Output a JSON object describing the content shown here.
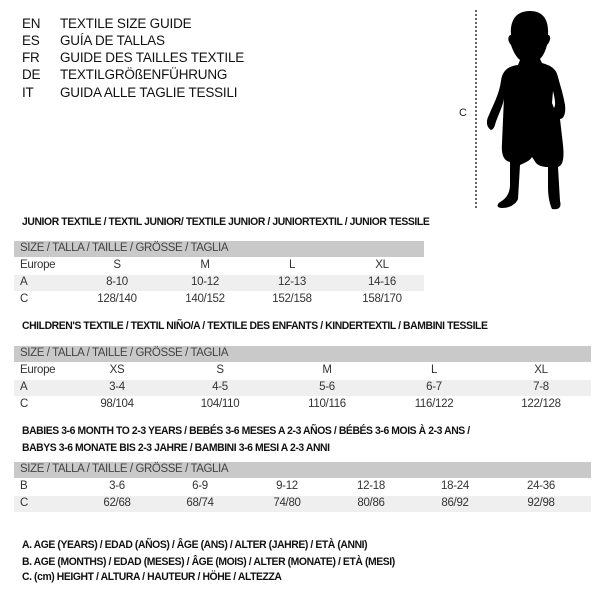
{
  "languages": [
    {
      "code": "EN",
      "title": "TEXTILE SIZE GUIDE"
    },
    {
      "code": "ES",
      "title": "GUÍA DE TALLAS"
    },
    {
      "code": "FR",
      "title": "GUIDE DES TAILLES TEXTILE"
    },
    {
      "code": "DE",
      "title": "TEXTILGRÖßENFÜHRUNG"
    },
    {
      "code": "IT",
      "title": "GUIDA ALLE TAGLIE TESSILI"
    }
  ],
  "figure": {
    "measure_label": "C",
    "icon": "child-silhouette"
  },
  "tables": [
    {
      "title_lines": [
        "JUNIOR TEXTILE / TEXTIL JUNIOR/ TEXTILE JUNIOR / JUNIORTEXTIL / JUNIOR TESSILE"
      ],
      "header": "SIZE / TALLA / TAILLE / GRÖSSE / TAGLIA",
      "rows": [
        {
          "label": "Europe",
          "values": [
            "S",
            "M",
            "L",
            "XL"
          ]
        },
        {
          "label": "A",
          "values": [
            "8-10",
            "10-12",
            "12-13",
            "14-16"
          ]
        },
        {
          "label": "C",
          "values": [
            "128/140",
            "140/152",
            "152/158",
            "158/170"
          ]
        }
      ]
    },
    {
      "title_lines": [
        "CHILDREN'S TEXTILE / TEXTIL NIÑO/A / TEXTILE DES ENFANTS / KINDERTEXTIL / BAMBINI TESSILE"
      ],
      "header": "SIZE / TALLA / TAILLE / GRÖSSE / TAGLIA",
      "rows": [
        {
          "label": "Europe",
          "values": [
            "XS",
            "S",
            "M",
            "L",
            "XL"
          ]
        },
        {
          "label": "A",
          "values": [
            "3-4",
            "4-5",
            "5-6",
            "6-7",
            "7-8"
          ]
        },
        {
          "label": "C",
          "values": [
            "98/104",
            "104/110",
            "110/116",
            "116/122",
            "122/128"
          ]
        }
      ]
    },
    {
      "title_lines": [
        "BABIES 3-6 MONTH TO 2-3 YEARS / BEBÉS 3-6 MESES A 2-3 AÑOS / BÉBÉS 3-6 MOIS À 2-3 ANS /",
        "BABYS 3-6 MONATE BIS 2-3 JAHRE / BAMBINI 3-6 MESI A 2-3 ANNI"
      ],
      "header": "SIZE / TALLA / TAILLE / GRÖSSE / TAGLIA",
      "rows": [
        {
          "label": "B",
          "values": [
            "3-6",
            "6-9",
            "9-12",
            "12-18",
            "18-24",
            "24-36"
          ]
        },
        {
          "label": "C",
          "values": [
            "62/68",
            "68/74",
            "74/80",
            "80/86",
            "86/92",
            "92/98"
          ]
        }
      ]
    }
  ],
  "legend": [
    "A. AGE (YEARS) / EDAD (AÑOS) / ÂGE (ANS) / ALTER (JAHRE) / ETÀ (ANNI)",
    "B. AGE (MONTHS) / EDAD (MESES) / ÂGE (MOIS) / ALTER (MONATE) / ETÀ (MESI)",
    "C. (cm) HEIGHT / ALTURA / HAUTEUR / HÖHE / ALTEZZA"
  ],
  "colors": {
    "header_bg": "#c9c9c9",
    "shade_bg": "#efefef"
  }
}
